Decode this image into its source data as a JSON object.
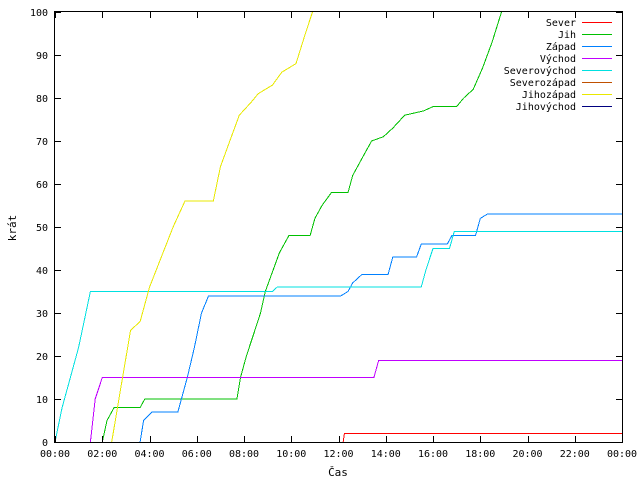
{
  "chart_data": {
    "type": "line",
    "xlabel": "Čas",
    "ylabel": "krát",
    "xlim": [
      0,
      24
    ],
    "ylim": [
      0,
      100
    ],
    "x_ticks": [
      {
        "v": 0,
        "label": "00:00"
      },
      {
        "v": 2,
        "label": "02:00"
      },
      {
        "v": 4,
        "label": "04:00"
      },
      {
        "v": 6,
        "label": "06:00"
      },
      {
        "v": 8,
        "label": "08:00"
      },
      {
        "v": 10,
        "label": "10:00"
      },
      {
        "v": 12,
        "label": "12:00"
      },
      {
        "v": 14,
        "label": "14:00"
      },
      {
        "v": 16,
        "label": "16:00"
      },
      {
        "v": 18,
        "label": "18:00"
      },
      {
        "v": 20,
        "label": "20:00"
      },
      {
        "v": 22,
        "label": "22:00"
      },
      {
        "v": 24,
        "label": "00:00"
      }
    ],
    "y_ticks": [
      0,
      10,
      20,
      30,
      40,
      50,
      60,
      70,
      80,
      90,
      100
    ],
    "grid": false,
    "legend": "top-right",
    "series": [
      {
        "name": "Sever",
        "color": "#ff0000",
        "points": [
          [
            12.2,
            0
          ],
          [
            12.25,
            2
          ],
          [
            24,
            2
          ]
        ]
      },
      {
        "name": "Jih",
        "color": "#00c000",
        "points": [
          [
            2.0,
            0
          ],
          [
            2.2,
            5
          ],
          [
            2.5,
            8
          ],
          [
            3.6,
            8
          ],
          [
            3.8,
            10
          ],
          [
            7.7,
            10
          ],
          [
            7.85,
            15
          ],
          [
            8.1,
            20
          ],
          [
            8.4,
            25
          ],
          [
            8.7,
            30
          ],
          [
            8.9,
            35
          ],
          [
            9.1,
            38
          ],
          [
            9.5,
            44
          ],
          [
            9.9,
            48
          ],
          [
            10.8,
            48
          ],
          [
            11.0,
            52
          ],
          [
            11.3,
            55
          ],
          [
            11.7,
            58
          ],
          [
            12.4,
            58
          ],
          [
            12.6,
            62
          ],
          [
            13.0,
            66
          ],
          [
            13.4,
            70
          ],
          [
            13.9,
            71
          ],
          [
            14.3,
            73
          ],
          [
            14.8,
            76
          ],
          [
            15.6,
            77
          ],
          [
            16.0,
            78
          ],
          [
            17.0,
            78
          ],
          [
            17.3,
            80
          ],
          [
            17.7,
            82
          ],
          [
            18.1,
            87
          ],
          [
            18.5,
            93
          ],
          [
            18.9,
            100
          ]
        ]
      },
      {
        "name": "Západ",
        "color": "#0080ff",
        "points": [
          [
            3.6,
            0
          ],
          [
            3.75,
            5
          ],
          [
            4.1,
            7
          ],
          [
            5.2,
            7
          ],
          [
            5.35,
            10
          ],
          [
            5.6,
            15
          ],
          [
            5.9,
            22
          ],
          [
            6.2,
            30
          ],
          [
            6.5,
            34
          ],
          [
            12.1,
            34
          ],
          [
            12.4,
            35
          ],
          [
            12.6,
            37
          ],
          [
            13.0,
            39
          ],
          [
            14.1,
            39
          ],
          [
            14.3,
            43
          ],
          [
            15.3,
            43
          ],
          [
            15.5,
            46
          ],
          [
            16.6,
            46
          ],
          [
            16.8,
            48
          ],
          [
            17.8,
            48
          ],
          [
            18.0,
            52
          ],
          [
            18.3,
            53
          ],
          [
            24,
            53
          ]
        ]
      },
      {
        "name": "Východ",
        "color": "#c000ff",
        "points": [
          [
            1.5,
            0
          ],
          [
            1.7,
            10
          ],
          [
            2.0,
            15
          ],
          [
            13.5,
            15
          ],
          [
            13.7,
            19
          ],
          [
            24,
            19
          ]
        ]
      },
      {
        "name": "Severovýchod",
        "color": "#00e0e0",
        "points": [
          [
            0,
            0
          ],
          [
            0.3,
            8
          ],
          [
            0.6,
            14
          ],
          [
            1.0,
            22
          ],
          [
            1.5,
            35
          ],
          [
            9.2,
            35
          ],
          [
            9.4,
            36
          ],
          [
            15.5,
            36
          ],
          [
            15.7,
            40
          ],
          [
            16.0,
            45
          ],
          [
            16.7,
            45
          ],
          [
            16.9,
            49
          ],
          [
            24,
            49
          ]
        ]
      },
      {
        "name": "Severozápad",
        "color": "#c05000",
        "points": []
      },
      {
        "name": "Jihozápad",
        "color": "#e8e800",
        "points": [
          [
            2.4,
            0
          ],
          [
            2.8,
            13
          ],
          [
            3.2,
            26
          ],
          [
            3.6,
            28
          ],
          [
            4.0,
            36
          ],
          [
            4.5,
            43
          ],
          [
            5.0,
            50
          ],
          [
            5.5,
            56
          ],
          [
            6.7,
            56
          ],
          [
            7.0,
            64
          ],
          [
            7.4,
            70
          ],
          [
            7.8,
            76
          ],
          [
            8.3,
            79
          ],
          [
            8.6,
            81
          ],
          [
            9.2,
            83
          ],
          [
            9.6,
            86
          ],
          [
            10.2,
            88
          ],
          [
            10.6,
            95
          ],
          [
            10.9,
            100
          ]
        ]
      },
      {
        "name": "Jihovýchod",
        "color": "#000080",
        "points": []
      }
    ]
  }
}
